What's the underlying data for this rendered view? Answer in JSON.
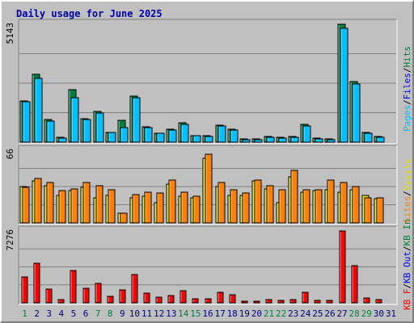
{
  "chart_data": {
    "type": "bar",
    "title": "Daily usage for June 2025",
    "categories": [
      "1",
      "2",
      "3",
      "4",
      "5",
      "6",
      "7",
      "8",
      "9",
      "10",
      "11",
      "12",
      "13",
      "14",
      "15",
      "16",
      "17",
      "18",
      "19",
      "20",
      "21",
      "22",
      "23",
      "24",
      "25",
      "26",
      "27",
      "28",
      "29",
      "30",
      "31"
    ],
    "weekend_days": [
      "1",
      "7",
      "8",
      "14",
      "15",
      "21",
      "22",
      "28",
      "29"
    ],
    "panels": [
      {
        "scale_label": "5143",
        "max": 5143,
        "legend": [
          {
            "text": "Hits",
            "color": "#008040"
          },
          {
            "text": "/",
            "color": "#000000"
          },
          {
            "text": "Files",
            "color": "#0000ff"
          },
          {
            "text": "/",
            "color": "#000000"
          },
          {
            "text": "Pages",
            "color": "#00c0ff"
          }
        ],
        "series": [
          {
            "name": "Hits",
            "color": "#008040",
            "values": [
              1810,
              2950,
              970,
              210,
              2280,
              1020,
              1330,
              440,
              940,
              2000,
              680,
              390,
              570,
              840,
              290,
              280,
              730,
              570,
              130,
              130,
              240,
              210,
              240,
              760,
              170,
              140,
              5143,
              2630,
              420,
              240,
              0
            ]
          },
          {
            "name": "Files",
            "color": "#0000ff",
            "values": [
              1770,
              2800,
              920,
              190,
              1920,
              990,
              1260,
              430,
              640,
              1940,
              650,
              370,
              530,
              780,
              270,
              260,
              690,
              520,
              110,
              110,
              210,
              180,
              210,
              720,
              150,
              110,
              4960,
              2520,
              400,
              210,
              0
            ]
          },
          {
            "name": "Pages",
            "color": "#00c0ff",
            "values": [
              1770,
              2800,
              920,
              190,
              1920,
              990,
              1260,
              430,
              640,
              1940,
              650,
              370,
              530,
              780,
              270,
              260,
              690,
              520,
              110,
              110,
              210,
              180,
              210,
              720,
              150,
              110,
              4960,
              2520,
              400,
              210,
              0
            ]
          }
        ]
      },
      {
        "scale_label": "66",
        "max": 66,
        "legend": [
          {
            "text": "Visits",
            "color": "#e0e000"
          },
          {
            "text": "/",
            "color": "#000000"
          },
          {
            "text": "Sites",
            "color": "#ff8000"
          }
        ],
        "series": [
          {
            "name": "Visits",
            "color": "#e0e000",
            "values": [
              33,
              38,
              34,
              25,
              29,
              32,
              23,
              25,
              9,
              23,
              24,
              18,
              35,
              24,
              23,
              59,
              33,
              25,
              25,
              38,
              31,
              18,
              42,
              28,
              29,
              30,
              28,
              30,
              25,
              22,
              0
            ]
          },
          {
            "name": "Sites",
            "color": "#ff8000",
            "values": [
              32,
              40,
              37,
              29,
              31,
              37,
              34,
              30,
              9,
              26,
              28,
              27,
              39,
              28,
              24,
              62,
              37,
              30,
              27,
              39,
              34,
              30,
              48,
              30,
              30,
              39,
              37,
              33,
              23,
              23,
              0
            ]
          }
        ]
      },
      {
        "scale_label": "7276",
        "max": 7276,
        "legend": [
          {
            "text": "KB In",
            "color": "#008040"
          },
          {
            "text": "/",
            "color": "#000000"
          },
          {
            "text": "KB Out",
            "color": "#0000ff"
          },
          {
            "text": "/",
            "color": "#000000"
          },
          {
            "text": "KB F",
            "color": "#ff0000"
          }
        ],
        "series": [
          {
            "name": "KB F",
            "color": "#ff0000",
            "values": [
              2580,
              4040,
              1370,
              310,
              3230,
              1510,
              1930,
              630,
              1340,
              2860,
              1010,
              540,
              730,
              1240,
              420,
              380,
              1060,
              780,
              180,
              190,
              320,
              260,
              340,
              1090,
              240,
              220,
              7276,
              3750,
              500,
              330,
              0
            ]
          }
        ]
      }
    ]
  }
}
